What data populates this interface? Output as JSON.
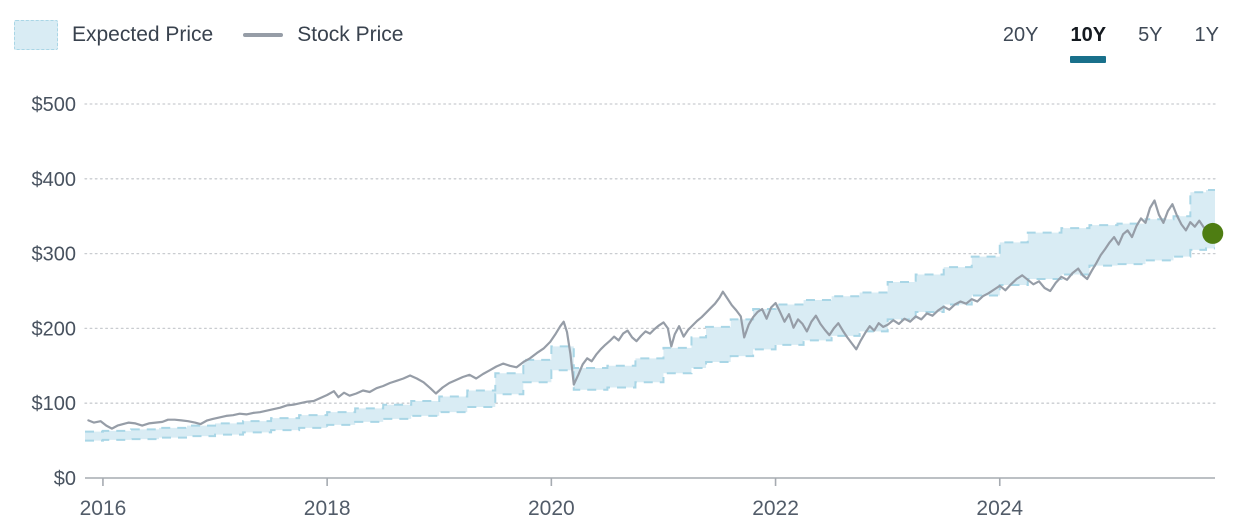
{
  "legend": {
    "items": [
      {
        "label": "Expected Price"
      },
      {
        "label": "Stock Price"
      }
    ]
  },
  "range_selector": {
    "options": [
      {
        "label": "20Y",
        "selected": false
      },
      {
        "label": "10Y",
        "selected": true
      },
      {
        "label": "5Y",
        "selected": false
      },
      {
        "label": "1Y",
        "selected": false
      }
    ]
  },
  "colors": {
    "band_fill": "#d9ecf4",
    "band_border": "#a9d6e6",
    "line": "#969da7",
    "marker": "#4e7d12",
    "accent": "#19708b",
    "grid": "#c9ccd0",
    "axis": "#a6abb1",
    "label_text": "#48525f"
  },
  "chart_data": {
    "type": "line",
    "title": "",
    "xlabel": "",
    "ylabel": "",
    "xlim": [
      2015.84,
      2025.92
    ],
    "ylim": [
      0,
      500
    ],
    "x_ticks": [
      2016,
      2018,
      2020,
      2022,
      2024
    ],
    "y_ticks": [
      0,
      100,
      200,
      300,
      400,
      500
    ],
    "y_tick_prefix": "$",
    "grid": "horizontal-dotted",
    "legend_position": "top-left",
    "series": [
      {
        "name": "Expected Price",
        "type": "band",
        "note": "stepped range band [year, low, high]",
        "points": [
          [
            2015.84,
            50,
            62
          ],
          [
            2016.0,
            51,
            63
          ],
          [
            2016.25,
            52,
            65
          ],
          [
            2016.5,
            54,
            67
          ],
          [
            2016.75,
            56,
            70
          ],
          [
            2017.0,
            58,
            73
          ],
          [
            2017.25,
            61,
            76
          ],
          [
            2017.5,
            64,
            80
          ],
          [
            2017.75,
            67,
            84
          ],
          [
            2018.0,
            71,
            88
          ],
          [
            2018.25,
            75,
            93
          ],
          [
            2018.5,
            79,
            98
          ],
          [
            2018.75,
            83,
            103
          ],
          [
            2019.0,
            88,
            109
          ],
          [
            2019.25,
            95,
            117
          ],
          [
            2019.5,
            112,
            140
          ],
          [
            2019.75,
            128,
            158
          ],
          [
            2020.0,
            144,
            176
          ],
          [
            2020.2,
            118,
            147
          ],
          [
            2020.5,
            121,
            150
          ],
          [
            2020.75,
            128,
            160
          ],
          [
            2021.0,
            140,
            174
          ],
          [
            2021.25,
            147,
            188
          ],
          [
            2021.38,
            155,
            202
          ],
          [
            2021.6,
            163,
            212
          ],
          [
            2021.8,
            172,
            226
          ],
          [
            2022.0,
            178,
            232
          ],
          [
            2022.25,
            184,
            238
          ],
          [
            2022.5,
            190,
            243
          ],
          [
            2022.75,
            196,
            248
          ],
          [
            2023.0,
            212,
            262
          ],
          [
            2023.25,
            222,
            272
          ],
          [
            2023.5,
            232,
            282
          ],
          [
            2023.75,
            244,
            296
          ],
          [
            2024.0,
            258,
            315
          ],
          [
            2024.25,
            266,
            328
          ],
          [
            2024.55,
            272,
            334
          ],
          [
            2024.8,
            284,
            338
          ],
          [
            2025.05,
            286,
            340
          ],
          [
            2025.3,
            291,
            346
          ],
          [
            2025.55,
            296,
            350
          ],
          [
            2025.7,
            305,
            382
          ],
          [
            2025.84,
            307,
            385
          ]
        ]
      },
      {
        "name": "Stock Price",
        "type": "line",
        "points": [
          [
            2015.87,
            77
          ],
          [
            2015.92,
            74
          ],
          [
            2015.98,
            76
          ],
          [
            2016.03,
            70
          ],
          [
            2016.08,
            66
          ],
          [
            2016.13,
            70
          ],
          [
            2016.18,
            72
          ],
          [
            2016.23,
            74
          ],
          [
            2016.29,
            73
          ],
          [
            2016.35,
            70
          ],
          [
            2016.41,
            73
          ],
          [
            2016.47,
            74
          ],
          [
            2016.53,
            75
          ],
          [
            2016.58,
            78
          ],
          [
            2016.64,
            78
          ],
          [
            2016.7,
            77
          ],
          [
            2016.76,
            76
          ],
          [
            2016.82,
            74
          ],
          [
            2016.87,
            72
          ],
          [
            2016.93,
            77
          ],
          [
            2016.98,
            79
          ],
          [
            2017.04,
            81
          ],
          [
            2017.1,
            83
          ],
          [
            2017.16,
            84
          ],
          [
            2017.22,
            86
          ],
          [
            2017.28,
            85
          ],
          [
            2017.34,
            87
          ],
          [
            2017.4,
            88
          ],
          [
            2017.46,
            90
          ],
          [
            2017.52,
            92
          ],
          [
            2017.58,
            94
          ],
          [
            2017.64,
            97
          ],
          [
            2017.7,
            98
          ],
          [
            2017.76,
            100
          ],
          [
            2017.82,
            102
          ],
          [
            2017.88,
            103
          ],
          [
            2017.94,
            107
          ],
          [
            2018.0,
            111
          ],
          [
            2018.06,
            116
          ],
          [
            2018.1,
            108
          ],
          [
            2018.15,
            114
          ],
          [
            2018.2,
            110
          ],
          [
            2018.26,
            113
          ],
          [
            2018.32,
            117
          ],
          [
            2018.38,
            115
          ],
          [
            2018.44,
            120
          ],
          [
            2018.5,
            123
          ],
          [
            2018.56,
            127
          ],
          [
            2018.62,
            130
          ],
          [
            2018.68,
            133
          ],
          [
            2018.74,
            137
          ],
          [
            2018.8,
            133
          ],
          [
            2018.86,
            128
          ],
          [
            2018.92,
            120
          ],
          [
            2018.97,
            113
          ],
          [
            2019.03,
            121
          ],
          [
            2019.09,
            127
          ],
          [
            2019.15,
            131
          ],
          [
            2019.21,
            135
          ],
          [
            2019.27,
            138
          ],
          [
            2019.33,
            133
          ],
          [
            2019.39,
            139
          ],
          [
            2019.45,
            144
          ],
          [
            2019.51,
            149
          ],
          [
            2019.57,
            153
          ],
          [
            2019.63,
            150
          ],
          [
            2019.69,
            148
          ],
          [
            2019.75,
            155
          ],
          [
            2019.81,
            160
          ],
          [
            2019.87,
            167
          ],
          [
            2019.93,
            173
          ],
          [
            2019.99,
            182
          ],
          [
            2020.04,
            193
          ],
          [
            2020.08,
            203
          ],
          [
            2020.11,
            209
          ],
          [
            2020.14,
            195
          ],
          [
            2020.17,
            166
          ],
          [
            2020.2,
            125
          ],
          [
            2020.24,
            138
          ],
          [
            2020.28,
            152
          ],
          [
            2020.32,
            160
          ],
          [
            2020.36,
            156
          ],
          [
            2020.4,
            165
          ],
          [
            2020.44,
            172
          ],
          [
            2020.48,
            178
          ],
          [
            2020.52,
            183
          ],
          [
            2020.56,
            189
          ],
          [
            2020.6,
            184
          ],
          [
            2020.64,
            193
          ],
          [
            2020.68,
            197
          ],
          [
            2020.72,
            188
          ],
          [
            2020.76,
            183
          ],
          [
            2020.8,
            190
          ],
          [
            2020.84,
            196
          ],
          [
            2020.88,
            193
          ],
          [
            2020.92,
            199
          ],
          [
            2020.96,
            204
          ],
          [
            2021.0,
            208
          ],
          [
            2021.04,
            200
          ],
          [
            2021.07,
            176
          ],
          [
            2021.1,
            192
          ],
          [
            2021.14,
            203
          ],
          [
            2021.18,
            189
          ],
          [
            2021.22,
            198
          ],
          [
            2021.26,
            204
          ],
          [
            2021.3,
            210
          ],
          [
            2021.34,
            215
          ],
          [
            2021.38,
            221
          ],
          [
            2021.42,
            227
          ],
          [
            2021.46,
            233
          ],
          [
            2021.5,
            241
          ],
          [
            2021.53,
            249
          ],
          [
            2021.57,
            240
          ],
          [
            2021.61,
            231
          ],
          [
            2021.65,
            224
          ],
          [
            2021.69,
            216
          ],
          [
            2021.72,
            188
          ],
          [
            2021.76,
            205
          ],
          [
            2021.8,
            215
          ],
          [
            2021.84,
            222
          ],
          [
            2021.88,
            226
          ],
          [
            2021.92,
            213
          ],
          [
            2021.96,
            228
          ],
          [
            2022.0,
            234
          ],
          [
            2022.04,
            222
          ],
          [
            2022.08,
            209
          ],
          [
            2022.12,
            219
          ],
          [
            2022.16,
            201
          ],
          [
            2022.2,
            212
          ],
          [
            2022.24,
            206
          ],
          [
            2022.28,
            196
          ],
          [
            2022.32,
            209
          ],
          [
            2022.36,
            217
          ],
          [
            2022.4,
            206
          ],
          [
            2022.44,
            198
          ],
          [
            2022.48,
            191
          ],
          [
            2022.52,
            200
          ],
          [
            2022.56,
            207
          ],
          [
            2022.6,
            197
          ],
          [
            2022.64,
            188
          ],
          [
            2022.68,
            180
          ],
          [
            2022.72,
            172
          ],
          [
            2022.76,
            184
          ],
          [
            2022.8,
            194
          ],
          [
            2022.84,
            203
          ],
          [
            2022.88,
            197
          ],
          [
            2022.92,
            207
          ],
          [
            2022.96,
            202
          ],
          [
            2023.0,
            205
          ],
          [
            2023.05,
            211
          ],
          [
            2023.1,
            206
          ],
          [
            2023.15,
            213
          ],
          [
            2023.2,
            209
          ],
          [
            2023.25,
            216
          ],
          [
            2023.3,
            212
          ],
          [
            2023.35,
            220
          ],
          [
            2023.4,
            217
          ],
          [
            2023.45,
            224
          ],
          [
            2023.5,
            229
          ],
          [
            2023.55,
            225
          ],
          [
            2023.6,
            232
          ],
          [
            2023.65,
            236
          ],
          [
            2023.7,
            233
          ],
          [
            2023.75,
            239
          ],
          [
            2023.8,
            236
          ],
          [
            2023.85,
            243
          ],
          [
            2023.9,
            247
          ],
          [
            2023.95,
            252
          ],
          [
            2024.0,
            257
          ],
          [
            2024.05,
            251
          ],
          [
            2024.1,
            259
          ],
          [
            2024.15,
            266
          ],
          [
            2024.2,
            271
          ],
          [
            2024.25,
            265
          ],
          [
            2024.3,
            259
          ],
          [
            2024.35,
            263
          ],
          [
            2024.4,
            254
          ],
          [
            2024.45,
            250
          ],
          [
            2024.5,
            261
          ],
          [
            2024.55,
            269
          ],
          [
            2024.6,
            265
          ],
          [
            2024.65,
            274
          ],
          [
            2024.7,
            280
          ],
          [
            2024.74,
            271
          ],
          [
            2024.78,
            266
          ],
          [
            2024.82,
            277
          ],
          [
            2024.86,
            287
          ],
          [
            2024.9,
            298
          ],
          [
            2024.94,
            306
          ],
          [
            2024.98,
            315
          ],
          [
            2025.02,
            322
          ],
          [
            2025.06,
            312
          ],
          [
            2025.1,
            326
          ],
          [
            2025.14,
            331
          ],
          [
            2025.18,
            322
          ],
          [
            2025.22,
            337
          ],
          [
            2025.26,
            347
          ],
          [
            2025.3,
            341
          ],
          [
            2025.34,
            361
          ],
          [
            2025.38,
            371
          ],
          [
            2025.42,
            352
          ],
          [
            2025.46,
            341
          ],
          [
            2025.5,
            357
          ],
          [
            2025.54,
            366
          ],
          [
            2025.58,
            351
          ],
          [
            2025.62,
            339
          ],
          [
            2025.66,
            331
          ],
          [
            2025.7,
            342
          ],
          [
            2025.74,
            336
          ],
          [
            2025.78,
            344
          ],
          [
            2025.82,
            335
          ],
          [
            2025.86,
            331
          ],
          [
            2025.9,
            327
          ]
        ]
      }
    ],
    "last_point_marker": {
      "year": 2025.9,
      "price": 327
    }
  }
}
